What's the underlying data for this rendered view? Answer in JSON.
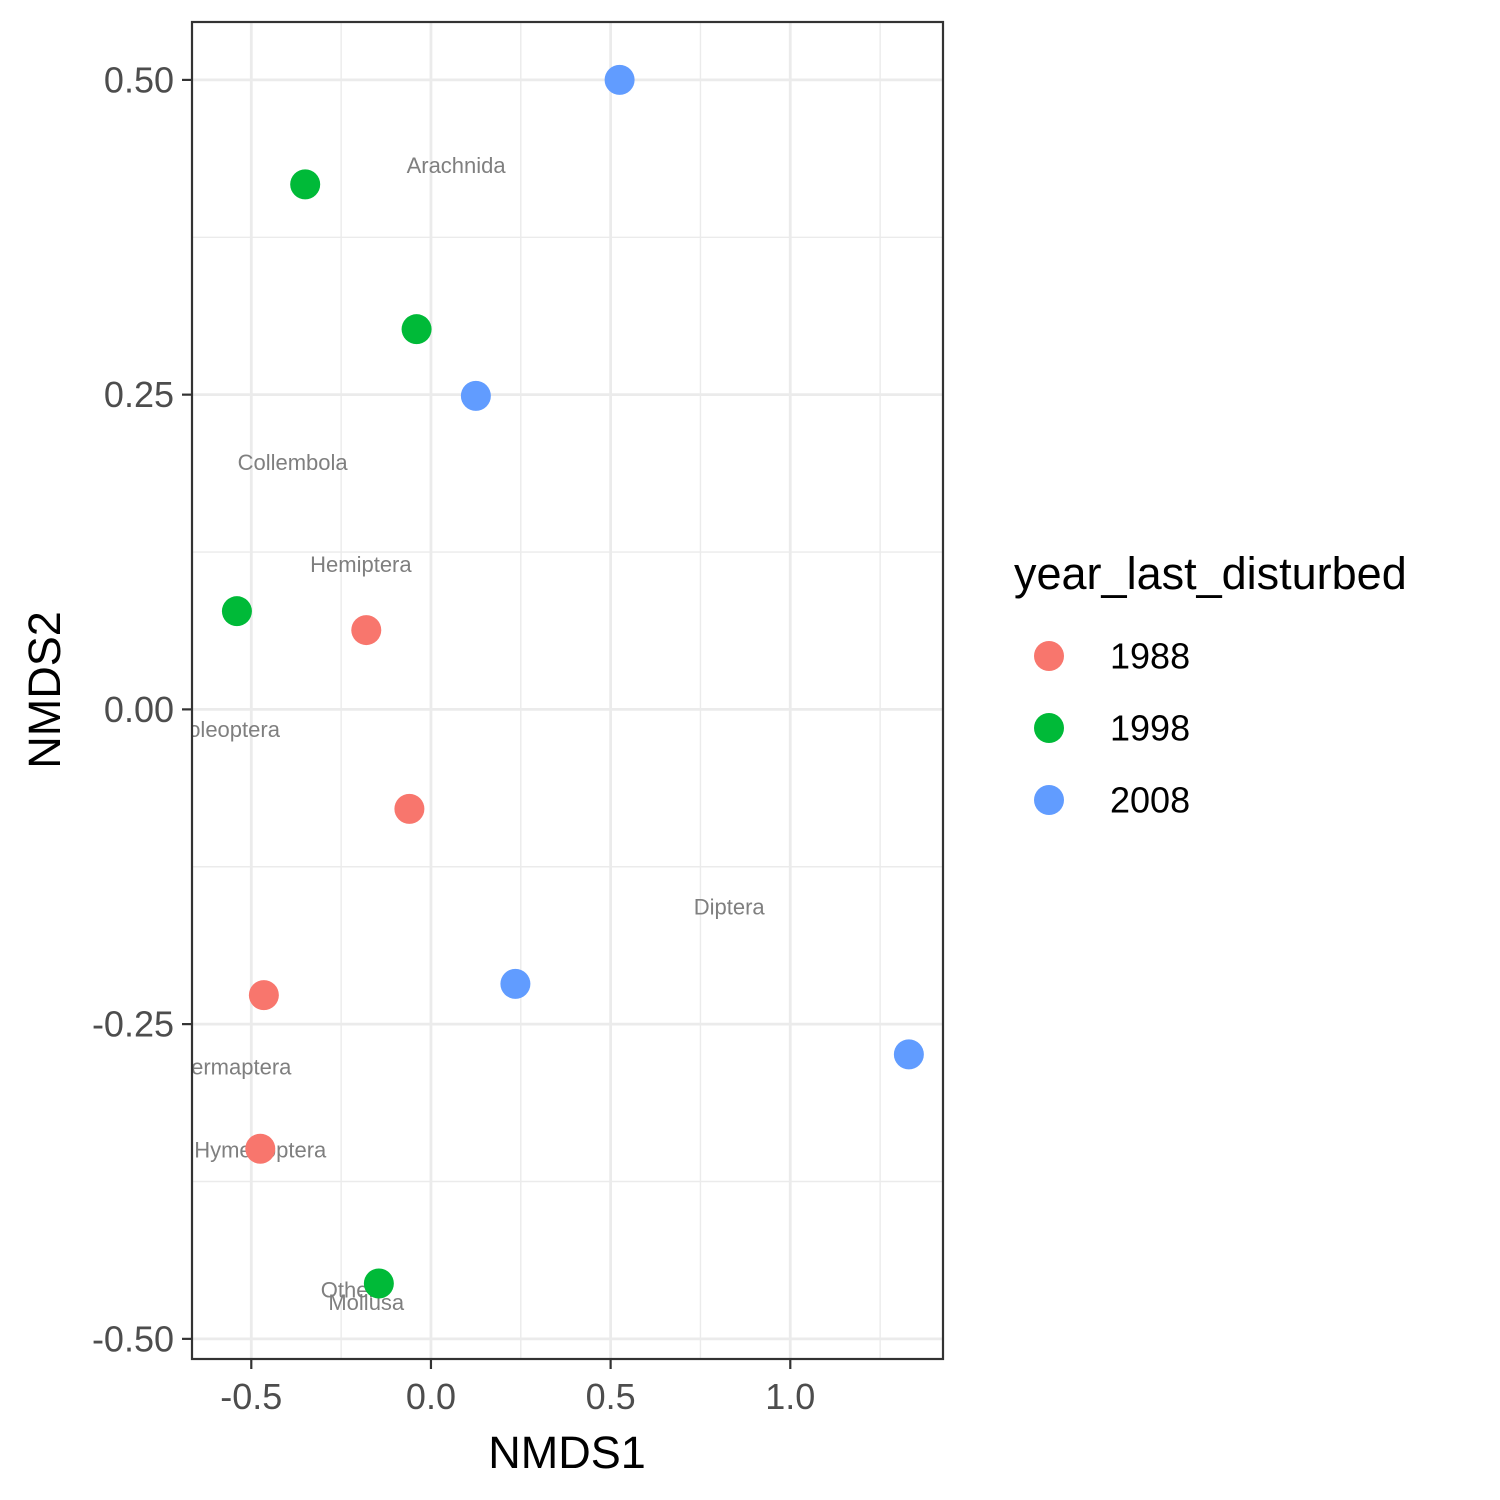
{
  "chart_data": {
    "type": "scatter",
    "xlabel": "NMDS1",
    "ylabel": "NMDS2",
    "xlim": [
      -0.665,
      1.425
    ],
    "ylim": [
      -0.516,
      0.546
    ],
    "x_ticks": [
      -0.5,
      0.0,
      0.5,
      1.0
    ],
    "x_tick_labels": [
      "-0.5",
      "0.0",
      "0.5",
      "1.0"
    ],
    "y_ticks": [
      -0.5,
      -0.25,
      0.0,
      0.25,
      0.5
    ],
    "y_tick_labels": [
      "-0.50",
      "-0.25",
      "0.00",
      "0.25",
      "0.50"
    ],
    "grid": true,
    "legend": {
      "title": "year_last_disturbed",
      "position": "right",
      "entries": [
        "1988",
        "1998",
        "2008"
      ]
    },
    "series": [
      {
        "name": "1988",
        "color": "#F8766D",
        "points": [
          {
            "x": -0.18,
            "y": 0.063
          },
          {
            "x": -0.06,
            "y": -0.079
          },
          {
            "x": -0.465,
            "y": -0.227
          },
          {
            "x": -0.475,
            "y": -0.349
          }
        ]
      },
      {
        "name": "1998",
        "color": "#00BA38",
        "points": [
          {
            "x": -0.35,
            "y": 0.417
          },
          {
            "x": -0.04,
            "y": 0.302
          },
          {
            "x": -0.54,
            "y": 0.078
          },
          {
            "x": -0.145,
            "y": -0.456
          }
        ]
      },
      {
        "name": "2008",
        "color": "#619CFF",
        "points": [
          {
            "x": 0.525,
            "y": 0.5
          },
          {
            "x": 0.125,
            "y": 0.249
          },
          {
            "x": 0.235,
            "y": -0.218
          },
          {
            "x": 1.33,
            "y": -0.274
          }
        ]
      }
    ],
    "text_labels": [
      {
        "text": "Arachnida",
        "x": 0.07,
        "y": 0.432
      },
      {
        "text": "Collembola",
        "x": -0.385,
        "y": 0.196
      },
      {
        "text": "Hemiptera",
        "x": -0.195,
        "y": 0.115
      },
      {
        "text": "Coleoptera",
        "x": -0.57,
        "y": -0.016
      },
      {
        "text": "Diptera",
        "x": 0.83,
        "y": -0.157
      },
      {
        "text": "Dermaptera",
        "x": -0.55,
        "y": -0.284
      },
      {
        "text": "Hymenoptera",
        "x": -0.475,
        "y": -0.35
      },
      {
        "text": "Other",
        "x": -0.23,
        "y": -0.461
      },
      {
        "text": "Mollusa",
        "x": -0.18,
        "y": -0.471
      }
    ]
  }
}
